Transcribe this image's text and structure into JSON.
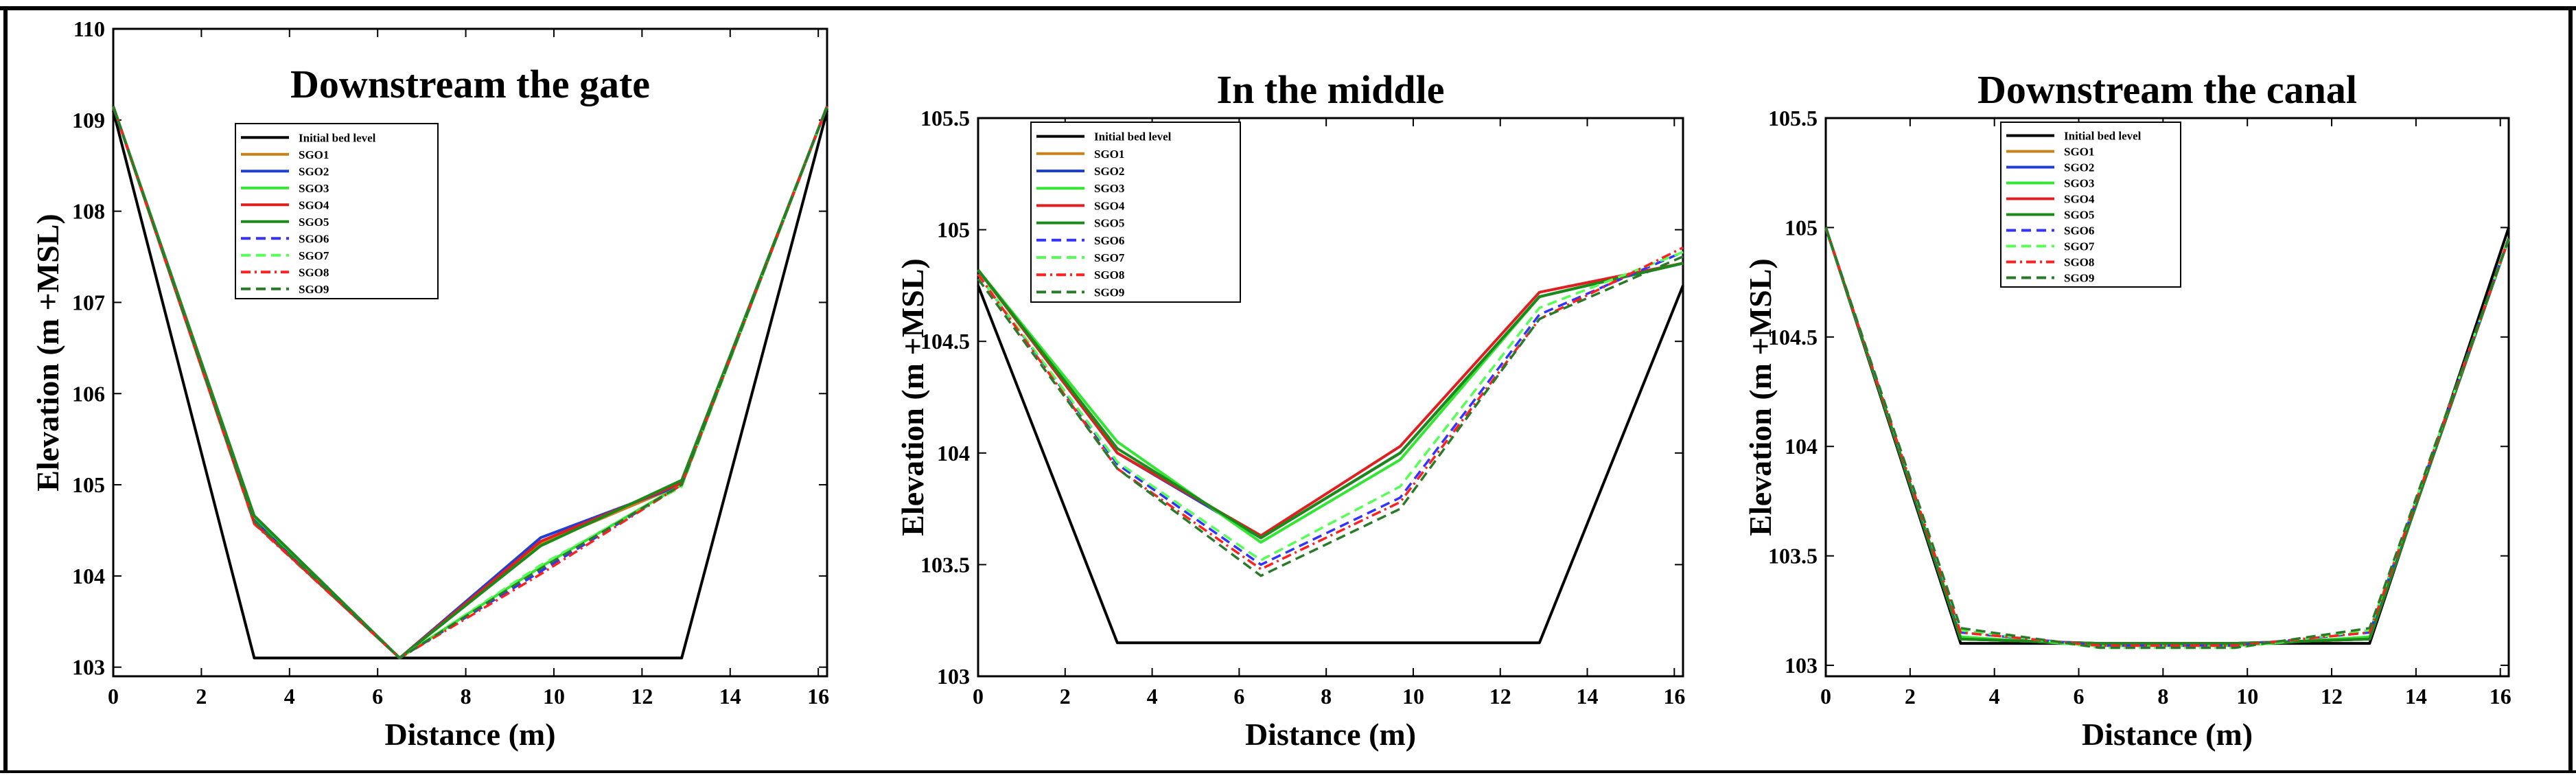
{
  "chart_data": [
    {
      "type": "line",
      "title": "Downstream the gate",
      "xlabel": "Distance (m)",
      "ylabel": "Elevation (m +MSL)",
      "xlim": [
        0,
        16.2
      ],
      "ylim": [
        102.9,
        110
      ],
      "xticks": [
        0,
        2,
        4,
        6,
        8,
        10,
        12,
        14,
        16
      ],
      "yticks": [
        103,
        104,
        105,
        106,
        107,
        108,
        109,
        110
      ],
      "legend_position": "top-left",
      "series": [
        {
          "name": "Initial bed level",
          "color": "#000000",
          "dash": "solid",
          "x": [
            0,
            3.2,
            12.9,
            16.2
          ],
          "y": [
            109.1,
            103.1,
            103.1,
            109.1
          ]
        },
        {
          "name": "SGO1",
          "color": "#c8801a",
          "dash": "solid",
          "x": [
            0,
            3.2,
            6.5,
            9.7,
            12.9,
            16.2
          ],
          "y": [
            109.15,
            104.6,
            103.1,
            104.35,
            105.0,
            109.15
          ]
        },
        {
          "name": "SGO2",
          "color": "#1f3fd4",
          "dash": "solid",
          "x": [
            0,
            3.2,
            6.5,
            9.7,
            12.9,
            16.2
          ],
          "y": [
            109.15,
            104.62,
            103.1,
            104.42,
            105.0,
            109.15
          ]
        },
        {
          "name": "SGO3",
          "color": "#33e633",
          "dash": "solid",
          "x": [
            0,
            3.2,
            6.5,
            9.7,
            12.9,
            16.2
          ],
          "y": [
            109.15,
            104.65,
            103.1,
            104.1,
            105.0,
            109.15
          ]
        },
        {
          "name": "SGO4",
          "color": "#e02020",
          "dash": "solid",
          "x": [
            0,
            3.2,
            6.5,
            9.7,
            12.9,
            16.2
          ],
          "y": [
            109.15,
            104.58,
            103.1,
            104.38,
            105.02,
            109.15
          ]
        },
        {
          "name": "SGO5",
          "color": "#1a8a1a",
          "dash": "solid",
          "x": [
            0,
            3.2,
            6.5,
            9.7,
            12.9,
            16.2
          ],
          "y": [
            109.15,
            104.66,
            103.1,
            104.33,
            105.05,
            109.15
          ]
        },
        {
          "name": "SGO6",
          "color": "#3333ff",
          "dash": "dashed",
          "x": [
            0,
            3.2,
            6.5,
            9.7,
            12.9,
            16.2
          ],
          "y": [
            109.15,
            104.6,
            103.1,
            104.05,
            105.0,
            109.15
          ]
        },
        {
          "name": "SGO7",
          "color": "#55ff55",
          "dash": "dashed",
          "x": [
            0,
            3.2,
            6.5,
            9.7,
            12.9,
            16.2
          ],
          "y": [
            109.15,
            104.6,
            103.1,
            104.12,
            104.98,
            109.15
          ]
        },
        {
          "name": "SGO8",
          "color": "#ff2020",
          "dash": "dashdot",
          "x": [
            0,
            3.2,
            6.5,
            9.7,
            12.9,
            16.2
          ],
          "y": [
            109.15,
            104.57,
            103.1,
            104.02,
            105.0,
            109.15
          ]
        },
        {
          "name": "SGO9",
          "color": "#2a7a2a",
          "dash": "dashed",
          "x": [
            0,
            3.2,
            6.5,
            9.7,
            12.9,
            16.2
          ],
          "y": [
            109.15,
            104.6,
            103.1,
            104.08,
            105.0,
            109.15
          ]
        }
      ]
    },
    {
      "type": "line",
      "title": "In the middle",
      "xlabel": "Distance (m)",
      "ylabel": "Elevation (m +MSL)",
      "xlim": [
        0,
        16.2
      ],
      "ylim": [
        103,
        105.5
      ],
      "xticks": [
        0,
        2,
        4,
        6,
        8,
        10,
        12,
        14,
        16
      ],
      "yticks": [
        103,
        103.5,
        104,
        104.5,
        105,
        105.5
      ],
      "legend_position": "top-left",
      "series": [
        {
          "name": "Initial bed level",
          "color": "#000000",
          "dash": "solid",
          "x": [
            0,
            3.2,
            12.9,
            16.2
          ],
          "y": [
            104.75,
            103.15,
            103.15,
            104.75
          ]
        },
        {
          "name": "SGO1",
          "color": "#c8801a",
          "dash": "solid",
          "x": [
            0,
            3.2,
            6.5,
            9.7,
            12.9,
            16.2
          ],
          "y": [
            104.82,
            104.0,
            103.62,
            104.0,
            104.7,
            104.85
          ]
        },
        {
          "name": "SGO2",
          "color": "#1f3fd4",
          "dash": "solid",
          "x": [
            0,
            3.2,
            6.5,
            9.7,
            12.9,
            16.2
          ],
          "y": [
            104.82,
            104.0,
            103.62,
            104.0,
            104.7,
            104.85
          ]
        },
        {
          "name": "SGO3",
          "color": "#33e633",
          "dash": "solid",
          "x": [
            0,
            3.2,
            6.5,
            9.7,
            12.9,
            16.2
          ],
          "y": [
            104.82,
            104.05,
            103.6,
            103.97,
            104.7,
            104.85
          ]
        },
        {
          "name": "SGO4",
          "color": "#e02020",
          "dash": "solid",
          "x": [
            0,
            3.2,
            6.5,
            9.7,
            12.9,
            16.2
          ],
          "y": [
            104.82,
            104.0,
            103.63,
            104.03,
            104.72,
            104.85
          ]
        },
        {
          "name": "SGO5",
          "color": "#1a8a1a",
          "dash": "solid",
          "x": [
            0,
            3.2,
            6.5,
            9.7,
            12.9,
            16.2
          ],
          "y": [
            104.82,
            104.02,
            103.62,
            104.0,
            104.7,
            104.85
          ]
        },
        {
          "name": "SGO6",
          "color": "#3333ff",
          "dash": "dashed",
          "x": [
            0,
            3.2,
            6.5,
            9.7,
            12.9,
            16.2
          ],
          "y": [
            104.8,
            103.95,
            103.5,
            103.8,
            104.62,
            104.9
          ]
        },
        {
          "name": "SGO7",
          "color": "#55ff55",
          "dash": "dashed",
          "x": [
            0,
            3.2,
            6.5,
            9.7,
            12.9,
            16.2
          ],
          "y": [
            104.8,
            103.96,
            103.52,
            103.85,
            104.65,
            104.9
          ]
        },
        {
          "name": "SGO8",
          "color": "#ff2020",
          "dash": "dashdot",
          "x": [
            0,
            3.2,
            6.5,
            9.7,
            12.9,
            16.2
          ],
          "y": [
            104.8,
            103.93,
            103.48,
            103.78,
            104.6,
            104.92
          ]
        },
        {
          "name": "SGO9",
          "color": "#2a7a2a",
          "dash": "dashed",
          "x": [
            0,
            3.2,
            6.5,
            9.7,
            12.9,
            16.2
          ],
          "y": [
            104.78,
            103.93,
            103.45,
            103.75,
            104.6,
            104.88
          ]
        }
      ]
    },
    {
      "type": "line",
      "title": "Downstream the canal",
      "xlabel": "Distance (m)",
      "ylabel": "Elevation (m +MSL)",
      "xlim": [
        0,
        16.2
      ],
      "ylim": [
        102.95,
        105.5
      ],
      "xticks": [
        0,
        2,
        4,
        6,
        8,
        10,
        12,
        14,
        16
      ],
      "yticks": [
        103,
        103.5,
        104,
        104.5,
        105,
        105.5
      ],
      "legend_position": "top-left",
      "series": [
        {
          "name": "Initial bed level",
          "color": "#000000",
          "dash": "solid",
          "x": [
            0,
            3.2,
            12.9,
            16.2
          ],
          "y": [
            105.0,
            103.1,
            103.1,
            105.0
          ]
        },
        {
          "name": "SGO1",
          "color": "#c8801a",
          "dash": "solid",
          "x": [
            0,
            3.2,
            6.5,
            9.7,
            12.9,
            16.2
          ],
          "y": [
            105.0,
            103.12,
            103.1,
            103.1,
            103.12,
            104.95
          ]
        },
        {
          "name": "SGO2",
          "color": "#1f3fd4",
          "dash": "solid",
          "x": [
            0,
            3.2,
            6.5,
            9.7,
            12.9,
            16.2
          ],
          "y": [
            105.0,
            103.12,
            103.1,
            103.1,
            103.12,
            104.95
          ]
        },
        {
          "name": "SGO3",
          "color": "#33e633",
          "dash": "solid",
          "x": [
            0,
            3.2,
            6.5,
            9.7,
            12.9,
            16.2
          ],
          "y": [
            105.0,
            103.13,
            103.09,
            103.09,
            103.13,
            104.95
          ]
        },
        {
          "name": "SGO4",
          "color": "#e02020",
          "dash": "solid",
          "x": [
            0,
            3.2,
            6.5,
            9.7,
            12.9,
            16.2
          ],
          "y": [
            105.0,
            103.12,
            103.1,
            103.1,
            103.12,
            104.95
          ]
        },
        {
          "name": "SGO5",
          "color": "#1a8a1a",
          "dash": "solid",
          "x": [
            0,
            3.2,
            6.5,
            9.7,
            12.9,
            16.2
          ],
          "y": [
            105.0,
            103.12,
            103.1,
            103.1,
            103.12,
            104.95
          ]
        },
        {
          "name": "SGO6",
          "color": "#3333ff",
          "dash": "dashed",
          "x": [
            0,
            3.2,
            6.5,
            9.7,
            12.9,
            16.2
          ],
          "y": [
            105.0,
            103.15,
            103.09,
            103.09,
            103.15,
            104.95
          ]
        },
        {
          "name": "SGO7",
          "color": "#55ff55",
          "dash": "dashed",
          "x": [
            0,
            3.2,
            6.5,
            9.7,
            12.9,
            16.2
          ],
          "y": [
            105.0,
            103.16,
            103.08,
            103.08,
            103.16,
            104.95
          ]
        },
        {
          "name": "SGO8",
          "color": "#ff2020",
          "dash": "dashdot",
          "x": [
            0,
            3.2,
            6.5,
            9.7,
            12.9,
            16.2
          ],
          "y": [
            105.0,
            103.15,
            103.09,
            103.09,
            103.15,
            104.95
          ]
        },
        {
          "name": "SGO9",
          "color": "#2a7a2a",
          "dash": "dashed",
          "x": [
            0,
            3.2,
            6.5,
            9.7,
            12.9,
            16.2
          ],
          "y": [
            105.0,
            103.17,
            103.08,
            103.08,
            103.17,
            104.95
          ]
        }
      ]
    }
  ]
}
